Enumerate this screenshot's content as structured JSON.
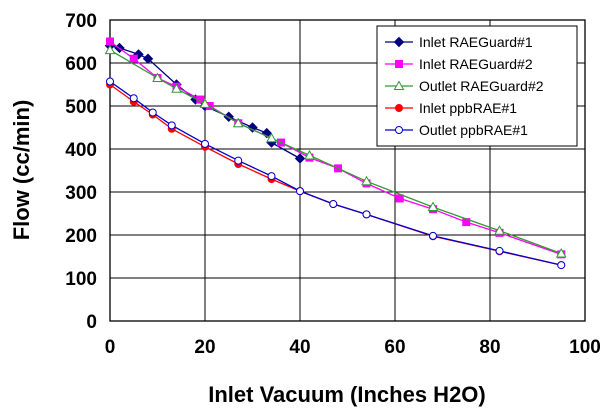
{
  "chart_data": {
    "type": "line",
    "title": "",
    "xlabel": "Inlet Vacuum (Inches H2O)",
    "ylabel": "Flow (cc/min)",
    "xlim": [
      0,
      100
    ],
    "ylim": [
      0,
      700
    ],
    "xticks": [
      0,
      20,
      40,
      60,
      80,
      100
    ],
    "yticks": [
      0,
      100,
      200,
      300,
      400,
      500,
      600,
      700
    ],
    "grid": true,
    "legend_position": "top-right",
    "series": [
      {
        "name": "Inlet RAEGuard#1",
        "color": "#000080",
        "marker": "diamond",
        "x": [
          0,
          2,
          6,
          8,
          14,
          18,
          20,
          25,
          30,
          33,
          34,
          40
        ],
        "y": [
          640,
          635,
          620,
          610,
          550,
          515,
          500,
          475,
          450,
          437,
          415,
          378
        ]
      },
      {
        "name": "Inlet RAEGuard#2",
        "color": "#ff00ff",
        "marker": "square",
        "x": [
          0,
          5,
          10,
          14,
          19,
          21,
          27,
          36,
          42,
          48,
          54,
          61,
          68,
          75,
          82,
          95
        ],
        "y": [
          650,
          610,
          565,
          545,
          515,
          500,
          460,
          415,
          380,
          355,
          320,
          285,
          260,
          230,
          205,
          155
        ]
      },
      {
        "name": "Outlet RAEGuard#2",
        "color": "#339933",
        "marker": "triangle",
        "x": [
          0,
          10,
          14,
          20,
          27,
          34,
          42,
          54,
          68,
          82,
          95
        ],
        "y": [
          630,
          565,
          540,
          505,
          460,
          425,
          385,
          325,
          265,
          210,
          157
        ]
      },
      {
        "name": "Inlet ppbRAE#1",
        "color": "#ff0000",
        "marker": "circle",
        "x": [
          0,
          5,
          9,
          13,
          20,
          27,
          34,
          40,
          47,
          54,
          68,
          82,
          95
        ],
        "y": [
          550,
          510,
          480,
          447,
          405,
          365,
          330,
          302,
          272,
          248,
          197,
          162,
          130
        ]
      },
      {
        "name": "Outlet ppbRAE#1",
        "color": "#0000cc",
        "marker": "open-circle",
        "x": [
          0,
          5,
          9,
          13,
          20,
          27,
          34,
          40,
          47,
          54,
          68,
          82,
          95
        ],
        "y": [
          557,
          518,
          485,
          455,
          412,
          373,
          337,
          302,
          272,
          248,
          198,
          163,
          130
        ]
      }
    ]
  }
}
